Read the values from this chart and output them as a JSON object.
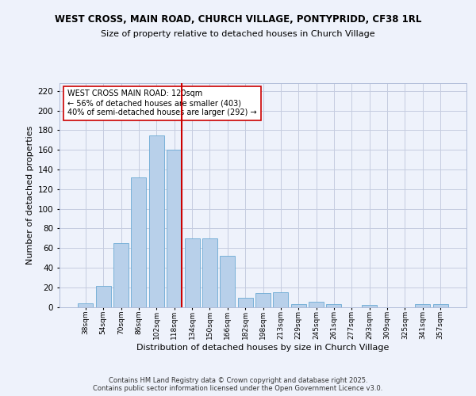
{
  "title1": "WEST CROSS, MAIN ROAD, CHURCH VILLAGE, PONTYPRIDD, CF38 1RL",
  "title2": "Size of property relative to detached houses in Church Village",
  "xlabel": "Distribution of detached houses by size in Church Village",
  "ylabel": "Number of detached properties",
  "categories": [
    "38sqm",
    "54sqm",
    "70sqm",
    "86sqm",
    "102sqm",
    "118sqm",
    "134sqm",
    "150sqm",
    "166sqm",
    "182sqm",
    "198sqm",
    "213sqm",
    "229sqm",
    "245sqm",
    "261sqm",
    "277sqm",
    "293sqm",
    "309sqm",
    "325sqm",
    "341sqm",
    "357sqm"
  ],
  "values": [
    4,
    21,
    65,
    132,
    175,
    160,
    70,
    70,
    52,
    9,
    14,
    15,
    3,
    5,
    3,
    0,
    2,
    0,
    0,
    3,
    3
  ],
  "bar_color": "#b8d0ea",
  "bar_edge_color": "#6aaad4",
  "vline_color": "#cc0000",
  "annotation_text": "WEST CROSS MAIN ROAD: 120sqm\n← 56% of detached houses are smaller (403)\n40% of semi-detached houses are larger (292) →",
  "ylim": [
    0,
    228
  ],
  "yticks": [
    0,
    20,
    40,
    60,
    80,
    100,
    120,
    140,
    160,
    180,
    200,
    220
  ],
  "footer": "Contains HM Land Registry data © Crown copyright and database right 2025.\nContains public sector information licensed under the Open Government Licence v3.0.",
  "background_color": "#eef2fb",
  "plot_background": "#eef2fb",
  "grid_color": "#c5cce0"
}
